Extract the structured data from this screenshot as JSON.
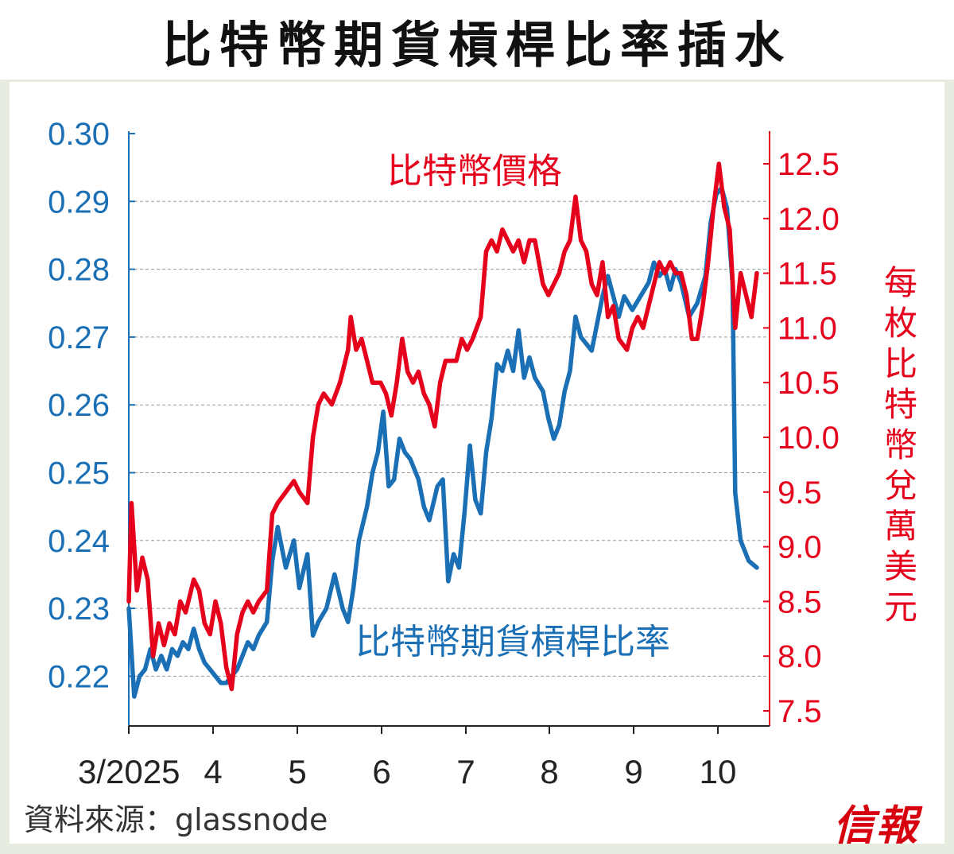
{
  "title": "比特幣期貨槓桿比率插水",
  "source": "資料來源：glassnode",
  "logo": "信報",
  "chart_data": {
    "type": "line",
    "x_tick_labels": [
      "3/2025",
      "4",
      "5",
      "6",
      "7",
      "8",
      "9",
      "10"
    ],
    "x_range": [
      "2025-03-01",
      "2025-10-19"
    ],
    "left_axis": {
      "color": "#1a6fb5",
      "range": [
        0.21,
        0.3
      ],
      "ticks": [
        "0.30",
        "0.29",
        "0.28",
        "0.27",
        "0.26",
        "0.25",
        "0.24",
        "0.23",
        "0.22"
      ]
    },
    "right_axis": {
      "label": "每枚比特幣兌萬美元",
      "color": "#e5001c",
      "range": [
        7.2,
        12.8
      ],
      "ticks": [
        "12.5",
        "12.0",
        "11.5",
        "11.0",
        "10.5",
        "10.0",
        "9.5",
        "9.0",
        "8.5",
        "8.0",
        "7.5"
      ]
    },
    "grid": "horizontal dashed",
    "series": [
      {
        "name": "比特幣價格",
        "axis": "right",
        "color": "#e5001c",
        "points": [
          [
            "2025-03-01",
            8.5
          ],
          [
            "2025-03-02",
            9.4
          ],
          [
            "2025-03-04",
            8.6
          ],
          [
            "2025-03-06",
            8.9
          ],
          [
            "2025-03-08",
            8.7
          ],
          [
            "2025-03-10",
            8.0
          ],
          [
            "2025-03-12",
            8.3
          ],
          [
            "2025-03-14",
            8.1
          ],
          [
            "2025-03-16",
            8.3
          ],
          [
            "2025-03-18",
            8.2
          ],
          [
            "2025-03-20",
            8.5
          ],
          [
            "2025-03-22",
            8.4
          ],
          [
            "2025-03-25",
            8.7
          ],
          [
            "2025-03-27",
            8.6
          ],
          [
            "2025-03-29",
            8.3
          ],
          [
            "2025-03-31",
            8.2
          ],
          [
            "2025-04-02",
            8.5
          ],
          [
            "2025-04-04",
            8.3
          ],
          [
            "2025-04-06",
            7.9
          ],
          [
            "2025-04-08",
            7.7
          ],
          [
            "2025-04-10",
            8.2
          ],
          [
            "2025-04-12",
            8.4
          ],
          [
            "2025-04-14",
            8.5
          ],
          [
            "2025-04-16",
            8.4
          ],
          [
            "2025-04-18",
            8.5
          ],
          [
            "2025-04-21",
            8.6
          ],
          [
            "2025-04-23",
            9.3
          ],
          [
            "2025-04-25",
            9.4
          ],
          [
            "2025-04-28",
            9.5
          ],
          [
            "2025-05-01",
            9.6
          ],
          [
            "2025-05-03",
            9.5
          ],
          [
            "2025-05-06",
            9.4
          ],
          [
            "2025-05-08",
            10.0
          ],
          [
            "2025-05-10",
            10.3
          ],
          [
            "2025-05-12",
            10.4
          ],
          [
            "2025-05-15",
            10.3
          ],
          [
            "2025-05-18",
            10.5
          ],
          [
            "2025-05-21",
            10.8
          ],
          [
            "2025-05-22",
            11.1
          ],
          [
            "2025-05-24",
            10.8
          ],
          [
            "2025-05-26",
            10.9
          ],
          [
            "2025-05-28",
            10.7
          ],
          [
            "2025-05-30",
            10.5
          ],
          [
            "2025-06-02",
            10.5
          ],
          [
            "2025-06-04",
            10.4
          ],
          [
            "2025-06-06",
            10.2
          ],
          [
            "2025-06-08",
            10.5
          ],
          [
            "2025-06-10",
            10.9
          ],
          [
            "2025-06-12",
            10.6
          ],
          [
            "2025-06-14",
            10.5
          ],
          [
            "2025-06-16",
            10.6
          ],
          [
            "2025-06-18",
            10.4
          ],
          [
            "2025-06-20",
            10.3
          ],
          [
            "2025-06-22",
            10.1
          ],
          [
            "2025-06-24",
            10.5
          ],
          [
            "2025-06-26",
            10.7
          ],
          [
            "2025-06-28",
            10.7
          ],
          [
            "2025-06-30",
            10.7
          ],
          [
            "2025-07-02",
            10.9
          ],
          [
            "2025-07-04",
            10.8
          ],
          [
            "2025-07-06",
            10.9
          ],
          [
            "2025-07-09",
            11.1
          ],
          [
            "2025-07-11",
            11.7
          ],
          [
            "2025-07-13",
            11.8
          ],
          [
            "2025-07-15",
            11.7
          ],
          [
            "2025-07-17",
            11.9
          ],
          [
            "2025-07-19",
            11.8
          ],
          [
            "2025-07-21",
            11.7
          ],
          [
            "2025-07-23",
            11.8
          ],
          [
            "2025-07-25",
            11.6
          ],
          [
            "2025-07-27",
            11.8
          ],
          [
            "2025-07-29",
            11.8
          ],
          [
            "2025-08-01",
            11.4
          ],
          [
            "2025-08-03",
            11.3
          ],
          [
            "2025-08-05",
            11.4
          ],
          [
            "2025-08-07",
            11.5
          ],
          [
            "2025-08-09",
            11.7
          ],
          [
            "2025-08-11",
            11.8
          ],
          [
            "2025-08-13",
            12.2
          ],
          [
            "2025-08-15",
            11.8
          ],
          [
            "2025-08-17",
            11.7
          ],
          [
            "2025-08-19",
            11.4
          ],
          [
            "2025-08-21",
            11.3
          ],
          [
            "2025-08-23",
            11.6
          ],
          [
            "2025-08-25",
            11.1
          ],
          [
            "2025-08-27",
            11.2
          ],
          [
            "2025-08-29",
            10.9
          ],
          [
            "2025-09-01",
            10.8
          ],
          [
            "2025-09-03",
            11.0
          ],
          [
            "2025-09-05",
            11.1
          ],
          [
            "2025-09-07",
            11.0
          ],
          [
            "2025-09-09",
            11.2
          ],
          [
            "2025-09-11",
            11.4
          ],
          [
            "2025-09-13",
            11.6
          ],
          [
            "2025-09-15",
            11.5
          ],
          [
            "2025-09-17",
            11.6
          ],
          [
            "2025-09-19",
            11.5
          ],
          [
            "2025-09-21",
            11.5
          ],
          [
            "2025-09-23",
            11.3
          ],
          [
            "2025-09-25",
            10.9
          ],
          [
            "2025-09-27",
            10.9
          ],
          [
            "2025-09-29",
            11.2
          ],
          [
            "2025-10-01",
            11.6
          ],
          [
            "2025-10-03",
            12.1
          ],
          [
            "2025-10-05",
            12.5
          ],
          [
            "2025-10-07",
            12.1
          ],
          [
            "2025-10-09",
            11.9
          ],
          [
            "2025-10-11",
            11.0
          ],
          [
            "2025-10-13",
            11.5
          ],
          [
            "2025-10-15",
            11.3
          ],
          [
            "2025-10-17",
            11.1
          ],
          [
            "2025-10-19",
            11.5
          ]
        ]
      },
      {
        "name": "比特幣期貨槓桿比率",
        "axis": "left",
        "color": "#1a6fb5",
        "points": [
          [
            "2025-03-01",
            0.23
          ],
          [
            "2025-03-03",
            0.217
          ],
          [
            "2025-03-05",
            0.22
          ],
          [
            "2025-03-07",
            0.221
          ],
          [
            "2025-03-09",
            0.224
          ],
          [
            "2025-03-11",
            0.221
          ],
          [
            "2025-03-13",
            0.223
          ],
          [
            "2025-03-15",
            0.221
          ],
          [
            "2025-03-17",
            0.224
          ],
          [
            "2025-03-19",
            0.223
          ],
          [
            "2025-03-21",
            0.225
          ],
          [
            "2025-03-23",
            0.224
          ],
          [
            "2025-03-25",
            0.227
          ],
          [
            "2025-03-27",
            0.224
          ],
          [
            "2025-03-29",
            0.222
          ],
          [
            "2025-03-31",
            0.221
          ],
          [
            "2025-04-02",
            0.22
          ],
          [
            "2025-04-04",
            0.219
          ],
          [
            "2025-04-06",
            0.219
          ],
          [
            "2025-04-08",
            0.22
          ],
          [
            "2025-04-10",
            0.221
          ],
          [
            "2025-04-12",
            0.223
          ],
          [
            "2025-04-14",
            0.225
          ],
          [
            "2025-04-16",
            0.224
          ],
          [
            "2025-04-18",
            0.226
          ],
          [
            "2025-04-21",
            0.228
          ],
          [
            "2025-04-23",
            0.237
          ],
          [
            "2025-04-25",
            0.242
          ],
          [
            "2025-04-28",
            0.236
          ],
          [
            "2025-05-01",
            0.24
          ],
          [
            "2025-05-03",
            0.233
          ],
          [
            "2025-05-06",
            0.238
          ],
          [
            "2025-05-08",
            0.226
          ],
          [
            "2025-05-10",
            0.228
          ],
          [
            "2025-05-13",
            0.23
          ],
          [
            "2025-05-16",
            0.235
          ],
          [
            "2025-05-19",
            0.23
          ],
          [
            "2025-05-21",
            0.228
          ],
          [
            "2025-05-23",
            0.233
          ],
          [
            "2025-05-25",
            0.24
          ],
          [
            "2025-05-28",
            0.245
          ],
          [
            "2025-05-30",
            0.25
          ],
          [
            "2025-06-01",
            0.253
          ],
          [
            "2025-06-03",
            0.259
          ],
          [
            "2025-06-05",
            0.248
          ],
          [
            "2025-06-07",
            0.249
          ],
          [
            "2025-06-09",
            0.255
          ],
          [
            "2025-06-11",
            0.253
          ],
          [
            "2025-06-13",
            0.252
          ],
          [
            "2025-06-16",
            0.249
          ],
          [
            "2025-06-18",
            0.245
          ],
          [
            "2025-06-20",
            0.243
          ],
          [
            "2025-06-23",
            0.248
          ],
          [
            "2025-06-25",
            0.249
          ],
          [
            "2025-06-27",
            0.234
          ],
          [
            "2025-06-29",
            0.238
          ],
          [
            "2025-07-01",
            0.236
          ],
          [
            "2025-07-03",
            0.244
          ],
          [
            "2025-07-05",
            0.254
          ],
          [
            "2025-07-07",
            0.246
          ],
          [
            "2025-07-09",
            0.244
          ],
          [
            "2025-07-11",
            0.253
          ],
          [
            "2025-07-13",
            0.258
          ],
          [
            "2025-07-15",
            0.266
          ],
          [
            "2025-07-17",
            0.265
          ],
          [
            "2025-07-19",
            0.268
          ],
          [
            "2025-07-21",
            0.265
          ],
          [
            "2025-07-23",
            0.271
          ],
          [
            "2025-07-25",
            0.264
          ],
          [
            "2025-07-27",
            0.267
          ],
          [
            "2025-07-29",
            0.264
          ],
          [
            "2025-08-01",
            0.262
          ],
          [
            "2025-08-03",
            0.258
          ],
          [
            "2025-08-05",
            0.255
          ],
          [
            "2025-08-07",
            0.257
          ],
          [
            "2025-08-09",
            0.262
          ],
          [
            "2025-08-11",
            0.265
          ],
          [
            "2025-08-13",
            0.273
          ],
          [
            "2025-08-15",
            0.27
          ],
          [
            "2025-08-17",
            0.269
          ],
          [
            "2025-08-19",
            0.268
          ],
          [
            "2025-08-21",
            0.272
          ],
          [
            "2025-08-23",
            0.276
          ],
          [
            "2025-08-25",
            0.279
          ],
          [
            "2025-08-27",
            0.276
          ],
          [
            "2025-08-29",
            0.273
          ],
          [
            "2025-08-31",
            0.276
          ],
          [
            "2025-09-03",
            0.274
          ],
          [
            "2025-09-06",
            0.276
          ],
          [
            "2025-09-09",
            0.278
          ],
          [
            "2025-09-11",
            0.281
          ],
          [
            "2025-09-13",
            0.279
          ],
          [
            "2025-09-15",
            0.28
          ],
          [
            "2025-09-17",
            0.277
          ],
          [
            "2025-09-19",
            0.28
          ],
          [
            "2025-09-21",
            0.278
          ],
          [
            "2025-09-24",
            0.273
          ],
          [
            "2025-09-27",
            0.275
          ],
          [
            "2025-09-30",
            0.279
          ],
          [
            "2025-10-02",
            0.287
          ],
          [
            "2025-10-04",
            0.291
          ],
          [
            "2025-10-06",
            0.292
          ],
          [
            "2025-10-08",
            0.289
          ],
          [
            "2025-10-10",
            0.278
          ],
          [
            "2025-10-11",
            0.247
          ],
          [
            "2025-10-13",
            0.24
          ],
          [
            "2025-10-16",
            0.237
          ],
          [
            "2025-10-19",
            0.236
          ]
        ]
      }
    ]
  }
}
